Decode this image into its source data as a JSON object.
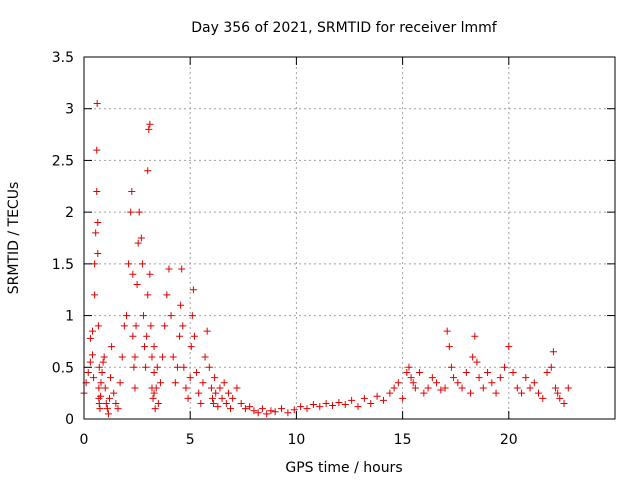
{
  "chart_data": {
    "type": "scatter",
    "title": "Day 356 of 2021, SRMTID for receiver lmmf",
    "xlabel": "GPS time / hours",
    "ylabel": "SRMTID / TECUs",
    "xlim": [
      0,
      25
    ],
    "ylim": [
      0,
      3.5
    ],
    "xticks": [
      0,
      5,
      10,
      15,
      20
    ],
    "xtick_labels": [
      "0",
      "5",
      "10",
      "15",
      "20"
    ],
    "yticks": [
      0,
      0.5,
      1,
      1.5,
      2,
      2.5,
      3,
      3.5
    ],
    "ytick_labels": [
      "0",
      "0.5",
      "1",
      "1.5",
      "2",
      "2.5",
      "3",
      "3.5"
    ],
    "grid": true,
    "marker": "+",
    "color": "#e00000",
    "series": [
      {
        "name": "SRMTID",
        "x": [
          0.0,
          0.1,
          0.2,
          0.3,
          0.3,
          0.4,
          0.4,
          0.45,
          0.5,
          0.5,
          0.55,
          0.6,
          0.6,
          0.62,
          0.65,
          0.65,
          0.68,
          0.7,
          0.7,
          0.72,
          0.72,
          0.75,
          0.78,
          0.8,
          0.85,
          0.9,
          0.95,
          1.0,
          1.05,
          1.1,
          1.15,
          1.2,
          1.25,
          1.3,
          1.4,
          1.5,
          1.6,
          1.7,
          1.8,
          1.9,
          2.0,
          2.1,
          2.2,
          2.25,
          2.3,
          2.3,
          2.35,
          2.4,
          2.4,
          2.45,
          2.5,
          2.55,
          2.6,
          2.7,
          2.75,
          2.8,
          2.85,
          2.9,
          2.95,
          3.0,
          3.0,
          3.05,
          3.1,
          3.1,
          3.15,
          3.2,
          3.2,
          3.25,
          3.3,
          3.3,
          3.3,
          3.35,
          3.4,
          3.45,
          3.5,
          3.6,
          3.7,
          3.8,
          3.9,
          4.0,
          4.1,
          4.2,
          4.3,
          4.4,
          4.5,
          4.55,
          4.6,
          4.65,
          4.7,
          4.8,
          4.9,
          5.0,
          5.05,
          5.1,
          5.15,
          5.2,
          5.3,
          5.4,
          5.5,
          5.6,
          5.7,
          5.8,
          5.9,
          6.0,
          6.05,
          6.1,
          6.15,
          6.2,
          6.3,
          6.4,
          6.5,
          6.6,
          6.7,
          6.8,
          6.9,
          7.0,
          7.2,
          7.4,
          7.6,
          7.8,
          8.0,
          8.2,
          8.4,
          8.6,
          8.8,
          9.0,
          9.3,
          9.6,
          9.9,
          10.2,
          10.5,
          10.8,
          11.1,
          11.4,
          11.7,
          12.0,
          12.3,
          12.6,
          12.9,
          13.2,
          13.5,
          13.8,
          14.1,
          14.4,
          14.6,
          14.8,
          15.0,
          15.2,
          15.3,
          15.4,
          15.5,
          15.6,
          15.8,
          16.0,
          16.2,
          16.4,
          16.6,
          16.8,
          17.0,
          17.1,
          17.2,
          17.3,
          17.4,
          17.6,
          17.8,
          18.0,
          18.2,
          18.3,
          18.4,
          18.5,
          18.6,
          18.8,
          19.0,
          19.2,
          19.4,
          19.6,
          19.8,
          20.0,
          20.2,
          20.4,
          20.6,
          20.8,
          21.0,
          21.2,
          21.4,
          21.6,
          21.8,
          22.0,
          22.1,
          22.2,
          22.3,
          22.4,
          22.6,
          22.8
        ],
        "values": [
          0.25,
          0.35,
          0.45,
          0.55,
          0.78,
          0.62,
          0.85,
          0.4,
          1.2,
          1.5,
          1.8,
          2.2,
          2.6,
          3.05,
          1.9,
          1.6,
          0.9,
          0.3,
          0.2,
          0.15,
          0.5,
          0.1,
          0.22,
          0.35,
          0.45,
          0.55,
          0.6,
          0.3,
          0.15,
          0.1,
          0.05,
          0.2,
          0.4,
          0.7,
          0.25,
          0.15,
          0.1,
          0.35,
          0.6,
          0.9,
          1.0,
          1.5,
          2.0,
          2.2,
          1.4,
          0.8,
          0.5,
          0.3,
          0.6,
          0.9,
          1.3,
          1.7,
          2.0,
          1.75,
          1.5,
          1.0,
          0.7,
          0.5,
          0.8,
          1.2,
          2.4,
          2.8,
          2.85,
          1.4,
          0.9,
          0.6,
          0.3,
          0.2,
          0.45,
          0.7,
          0.25,
          0.1,
          0.3,
          0.5,
          0.15,
          0.35,
          0.6,
          0.9,
          1.2,
          1.45,
          1.0,
          0.6,
          0.35,
          0.5,
          0.8,
          1.1,
          1.45,
          0.9,
          0.5,
          0.3,
          0.2,
          0.4,
          0.7,
          1.0,
          1.25,
          0.8,
          0.45,
          0.25,
          0.15,
          0.35,
          0.6,
          0.85,
          0.5,
          0.3,
          0.2,
          0.15,
          0.4,
          0.25,
          0.12,
          0.3,
          0.2,
          0.35,
          0.15,
          0.25,
          0.1,
          0.2,
          0.3,
          0.15,
          0.1,
          0.12,
          0.08,
          0.06,
          0.1,
          0.05,
          0.08,
          0.07,
          0.1,
          0.06,
          0.09,
          0.12,
          0.1,
          0.14,
          0.12,
          0.15,
          0.13,
          0.16,
          0.14,
          0.18,
          0.12,
          0.2,
          0.15,
          0.22,
          0.18,
          0.25,
          0.3,
          0.35,
          0.2,
          0.45,
          0.5,
          0.4,
          0.35,
          0.3,
          0.45,
          0.25,
          0.3,
          0.4,
          0.35,
          0.28,
          0.3,
          0.85,
          0.7,
          0.5,
          0.4,
          0.35,
          0.3,
          0.45,
          0.25,
          0.6,
          0.8,
          0.55,
          0.4,
          0.3,
          0.45,
          0.35,
          0.25,
          0.4,
          0.5,
          0.7,
          0.45,
          0.3,
          0.25,
          0.4,
          0.3,
          0.35,
          0.25,
          0.2,
          0.45,
          0.5,
          0.65,
          0.3,
          0.25,
          0.2,
          0.15,
          0.3
        ]
      }
    ]
  }
}
